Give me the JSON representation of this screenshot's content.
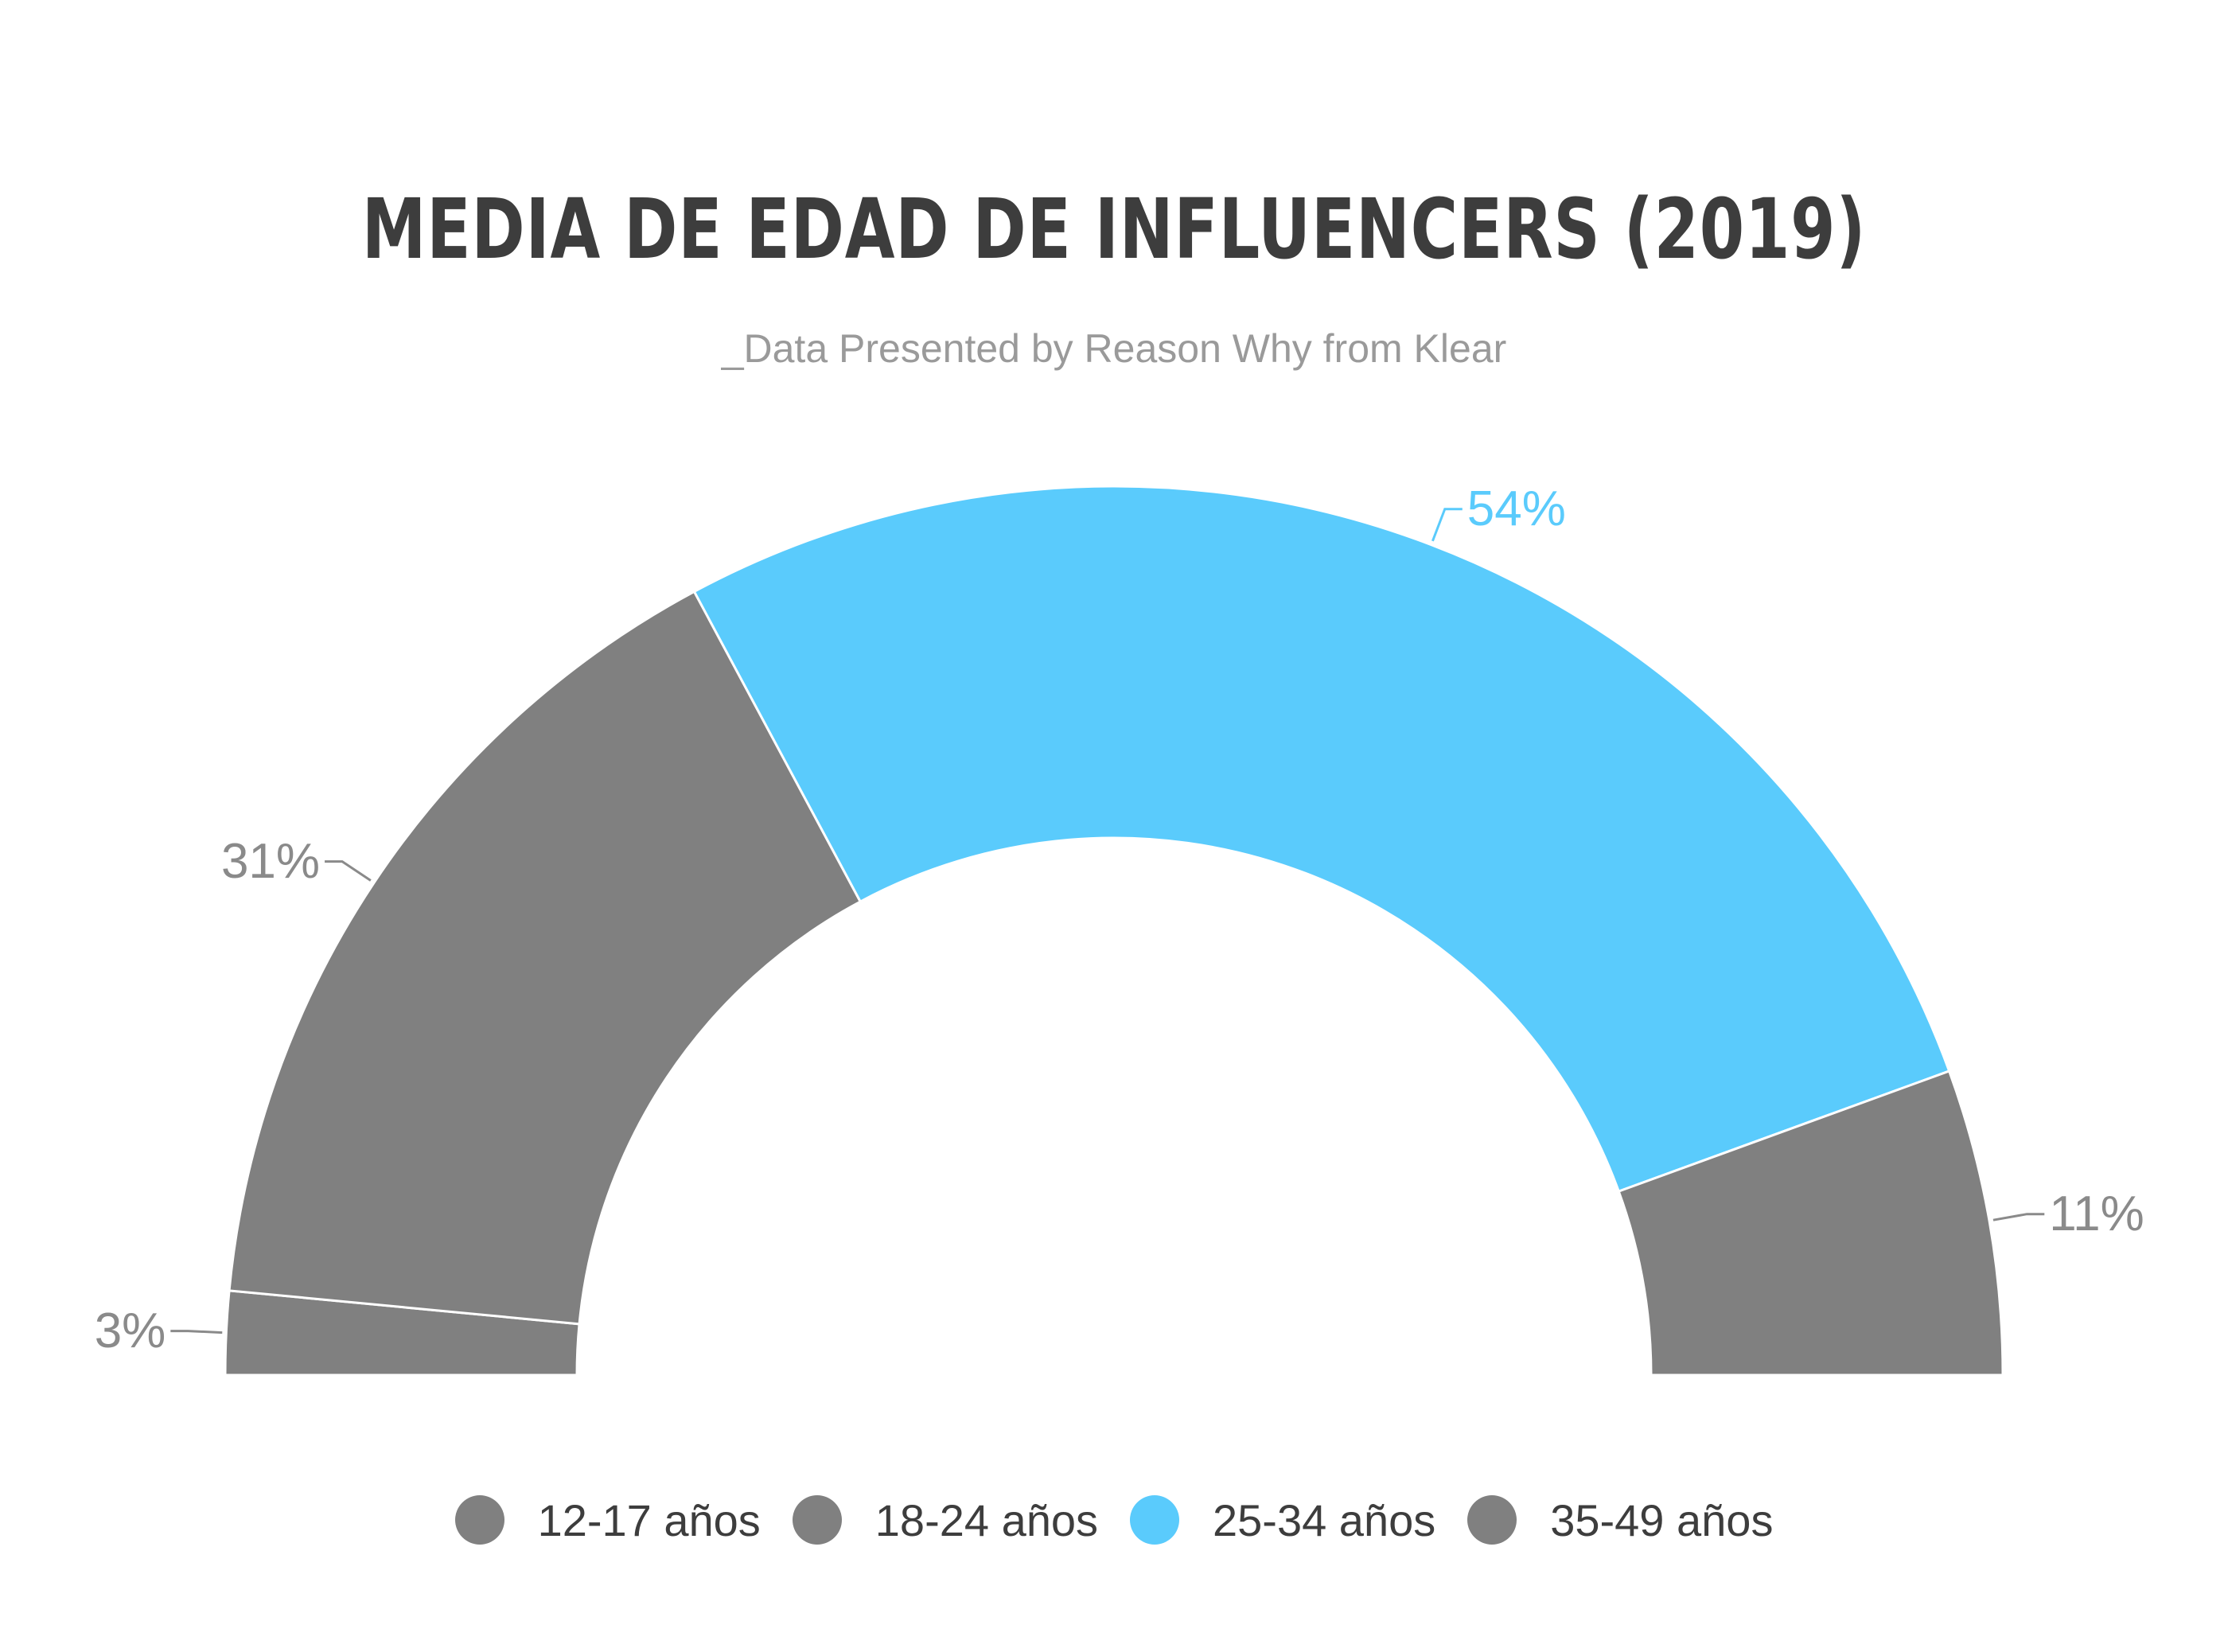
{
  "chart_data": {
    "type": "pie",
    "subtype": "semi-donut",
    "title": "MEDIA DE EDAD DE INFLUENCERS (2019)",
    "subtitle": "_Data Presented by Reason Why from Klear",
    "categories": [
      "12-17 años",
      "18-24 años",
      "25-34 años",
      "35-49 años"
    ],
    "values": [
      3,
      31,
      54,
      11
    ],
    "data_labels": [
      "3%",
      "31%",
      "54%",
      "11%"
    ],
    "colors": [
      "#808080",
      "#808080",
      "#5acbfc",
      "#808080"
    ],
    "label_colors": [
      "#8a8a8a",
      "#8a8a8a",
      "#5acbfc",
      "#8a8a8a"
    ],
    "legend_position": "bottom",
    "grid": false
  }
}
